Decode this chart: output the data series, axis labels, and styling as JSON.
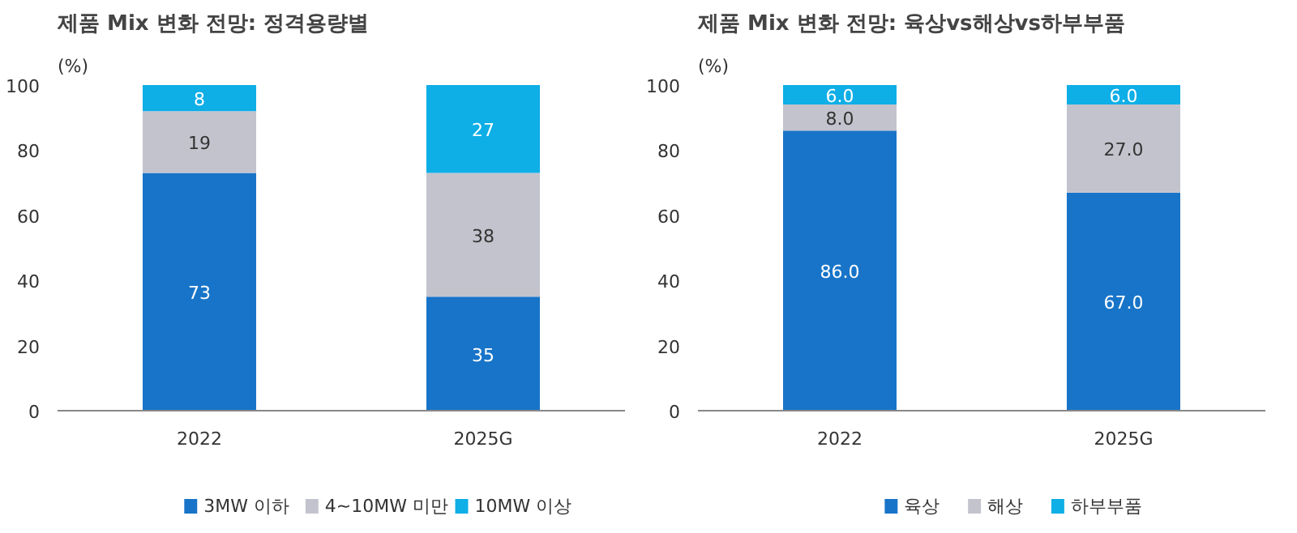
{
  "chart_data": [
    {
      "type": "bar",
      "title": "제품 Mix 변화 전망: 정격용량별",
      "ylabel": "(%)",
      "categories": [
        "2022",
        "2025G"
      ],
      "stacked": true,
      "data_labels": true,
      "ylim": [
        0,
        100
      ],
      "yticks": [
        0,
        20,
        40,
        60,
        80,
        100
      ],
      "grid": false,
      "legend": "bottom",
      "series": [
        {
          "name": "3MW 이하",
          "color": "#1874c8",
          "values": [
            73,
            35
          ]
        },
        {
          "name": "4~10MW 미만",
          "color": "#c3c3cd",
          "values": [
            19,
            38
          ]
        },
        {
          "name": "10MW 이상",
          "color": "#0eaee6",
          "values": [
            8,
            27
          ]
        }
      ]
    },
    {
      "type": "bar",
      "title": "제품 Mix 변화 전망: 육상vs해상vs하부부품",
      "ylabel": "(%)",
      "categories": [
        "2022",
        "2025G"
      ],
      "stacked": true,
      "ylim": [
        0,
        100
      ],
      "yticks": [
        0,
        20,
        40,
        60,
        80,
        100
      ],
      "grid": false,
      "legend": "bottom",
      "series": [
        {
          "name": "육상",
          "color": "#1874c8",
          "values": [
            86.0,
            67.0
          ],
          "value_labels": [
            "86.0",
            "67.0"
          ]
        },
        {
          "name": "해상",
          "color": "#c3c3cd",
          "values": [
            8.0,
            27.0
          ],
          "value_labels": [
            "8.0",
            "27.0"
          ]
        },
        {
          "name": "하부부품",
          "color": "#0eaee6",
          "values": [
            6.0,
            6.0
          ],
          "value_labels": [
            "6.0",
            "6.0"
          ]
        }
      ]
    }
  ]
}
